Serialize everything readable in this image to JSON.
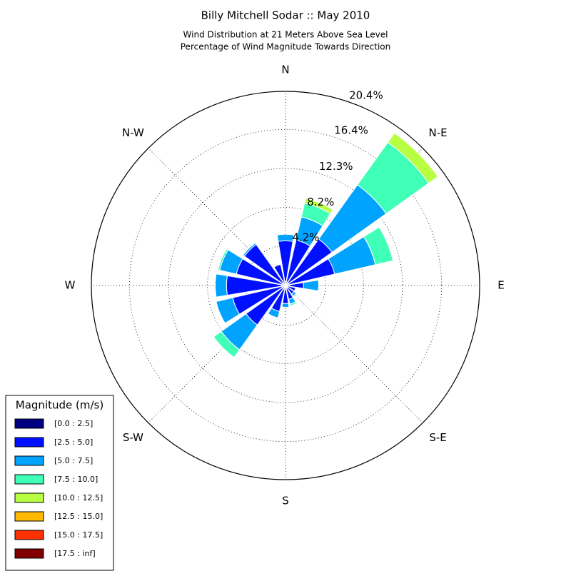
{
  "chart_data": {
    "type": "windrose",
    "title": "Billy Mitchell Sodar :: May 2010",
    "subtitle": [
      "Wind Distribution at 21 Meters Above Sea Level",
      "Percentage of Wind Magnitude Towards Direction"
    ],
    "direction_labels": [
      "N",
      "N-E",
      "E",
      "S-E",
      "S",
      "S-W",
      "W",
      "N-W"
    ],
    "categories": [
      null,
      null,
      null,
      null,
      null,
      null,
      null,
      null,
      null,
      null,
      null,
      null,
      null,
      null,
      null,
      null
    ],
    "ylim": [
      0,
      20.4
    ],
    "yticks": [
      {
        "value": 4.2,
        "label": "4.2%"
      },
      {
        "value": 8.2,
        "label": "8.2%"
      },
      {
        "value": 12.3,
        "label": "12.3%"
      },
      {
        "value": 16.4,
        "label": "16.4%"
      },
      {
        "value": 20.4,
        "label": "20.4%"
      }
    ],
    "grid": true,
    "legend_title": "Magnitude (m/s)",
    "legend": "lower left",
    "series": [
      {
        "name": "[0.0 : 2.5]",
        "color": "#000080",
        "values": [
          0.4,
          0.4,
          0.4,
          0.4,
          0.4,
          0.3,
          0.3,
          0.3,
          0.4,
          0.4,
          0.4,
          0.4,
          0.4,
          0.4,
          0.4,
          0.5
        ]
      },
      {
        "name": "[2.5 : 5.0]",
        "color": "#0010ff",
        "values": [
          4.3,
          4.5,
          5.6,
          4.9,
          1.5,
          0.8,
          0.8,
          1.2,
          1.5,
          2.4,
          4.7,
          5.3,
          5.8,
          4.9,
          4.9,
          1.8
        ]
      },
      {
        "name": "[5.0 : 7.5]",
        "color": "#00a4ff",
        "values": [
          0.7,
          2.5,
          7.0,
          4.4,
          1.6,
          0,
          0.3,
          0.5,
          0.4,
          0.7,
          3.2,
          1.8,
          1.2,
          1.8,
          0.2,
          0
        ]
      },
      {
        "name": "[7.5 : 10.0]",
        "color": "#40ffb7",
        "values": [
          0,
          1.5,
          5.5,
          1.9,
          0,
          0,
          0,
          0.2,
          0,
          0,
          1.0,
          0,
          0,
          0.2,
          0,
          0
        ]
      },
      {
        "name": "[10.0 : 12.5]",
        "color": "#b7ff40",
        "values": [
          0,
          0.5,
          1.2,
          0,
          0,
          0,
          0,
          0,
          0,
          0,
          0,
          0,
          0,
          0,
          0,
          0
        ]
      },
      {
        "name": "[12.5 : 15.0]",
        "color": "#ffb900",
        "values": [
          0,
          0,
          0,
          0,
          0,
          0,
          0,
          0,
          0,
          0,
          0,
          0,
          0,
          0,
          0,
          0
        ]
      },
      {
        "name": "[15.0 : 17.5]",
        "color": "#ff3000",
        "values": [
          0,
          0,
          0,
          0,
          0,
          0,
          0,
          0,
          0,
          0,
          0,
          0,
          0,
          0,
          0,
          0
        ]
      },
      {
        "name": "[17.5 : inf]",
        "color": "#800000",
        "values": [
          0,
          0,
          0,
          0,
          0,
          0,
          0,
          0,
          0,
          0,
          0,
          0,
          0,
          0,
          0,
          0
        ]
      }
    ]
  }
}
